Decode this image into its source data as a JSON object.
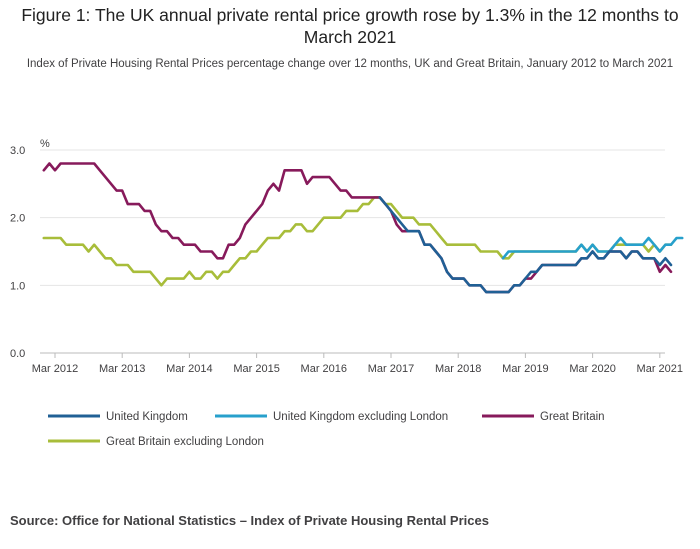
{
  "header": {
    "title": "Figure 1: The UK annual private rental price growth rose by 1.3% in the 12 months to March 2021",
    "subtitle": "Index of Private Housing Rental Prices percentage change over 12 months, UK and Great Britain, January 2012 to March 2021"
  },
  "footer": {
    "source": "Source: Office for National Statistics – Index of Private Housing Rental Prices"
  },
  "chart_data": {
    "type": "line",
    "unit_label": "%",
    "ylim": [
      0,
      3
    ],
    "yticks": [
      "0.0",
      "1.0",
      "2.0",
      "3.0"
    ],
    "xtick_labels": [
      "Mar 2012",
      "Mar 2013",
      "Mar 2014",
      "Mar 2015",
      "Mar 2016",
      "Mar 2017",
      "Mar 2018",
      "Mar 2019",
      "Mar 2020",
      "Mar 2021"
    ],
    "x_start": "Jan 2012",
    "x_end": "Mar 2021",
    "grid": true,
    "legend_position": "bottom",
    "series": [
      {
        "name": "Great Britain excluding London",
        "color": "#a8bd3a",
        "values": [
          1.7,
          1.7,
          1.7,
          1.7,
          1.6,
          1.6,
          1.6,
          1.6,
          1.5,
          1.6,
          1.5,
          1.4,
          1.4,
          1.3,
          1.3,
          1.3,
          1.2,
          1.2,
          1.2,
          1.2,
          1.1,
          1.0,
          1.1,
          1.1,
          1.1,
          1.1,
          1.2,
          1.1,
          1.1,
          1.2,
          1.2,
          1.1,
          1.2,
          1.2,
          1.3,
          1.4,
          1.4,
          1.5,
          1.5,
          1.6,
          1.7,
          1.7,
          1.7,
          1.8,
          1.8,
          1.9,
          1.9,
          1.8,
          1.8,
          1.9,
          2.0,
          2.0,
          2.0,
          2.0,
          2.1,
          2.1,
          2.1,
          2.2,
          2.2,
          2.3,
          2.3,
          2.2,
          2.2,
          2.1,
          2.0,
          2.0,
          2.0,
          1.9,
          1.9,
          1.9,
          1.8,
          1.7,
          1.6,
          1.6,
          1.6,
          1.6,
          1.6,
          1.6,
          1.5,
          1.5,
          1.5,
          1.5,
          1.4,
          1.4,
          1.5,
          1.5,
          1.5,
          1.5,
          1.5,
          1.5,
          1.5,
          1.5,
          1.5,
          1.5,
          1.5,
          1.5,
          1.6,
          1.5,
          1.6,
          1.5,
          1.5,
          1.5,
          1.6,
          1.6,
          1.6,
          1.6,
          1.6,
          1.6,
          1.5,
          1.6,
          1.5,
          1.6,
          1.6
        ]
      },
      {
        "name": "United Kingdom excluding London",
        "color": "#27a0cc",
        "values": [
          null,
          null,
          null,
          null,
          null,
          null,
          null,
          null,
          null,
          null,
          null,
          null,
          null,
          null,
          null,
          null,
          null,
          null,
          null,
          null,
          null,
          null,
          null,
          null,
          null,
          null,
          null,
          null,
          null,
          null,
          null,
          null,
          null,
          null,
          null,
          null,
          null,
          null,
          null,
          null,
          null,
          null,
          null,
          null,
          null,
          null,
          null,
          null,
          null,
          null,
          null,
          null,
          null,
          null,
          null,
          null,
          null,
          null,
          null,
          null,
          null,
          null,
          null,
          null,
          null,
          null,
          null,
          null,
          null,
          null,
          null,
          null,
          null,
          null,
          null,
          null,
          null,
          null,
          null,
          null,
          null,
          null,
          1.4,
          1.5,
          1.5,
          1.5,
          1.5,
          1.5,
          1.5,
          1.5,
          1.5,
          1.5,
          1.5,
          1.5,
          1.5,
          1.5,
          1.6,
          1.5,
          1.6,
          1.5,
          1.5,
          1.5,
          1.6,
          1.7,
          1.6,
          1.6,
          1.6,
          1.6,
          1.7,
          1.6,
          1.5,
          1.6,
          1.6,
          1.7,
          1.7
        ]
      },
      {
        "name": "Great Britain",
        "color": "#871a5b",
        "values": [
          2.7,
          2.8,
          2.7,
          2.8,
          2.8,
          2.8,
          2.8,
          2.8,
          2.8,
          2.8,
          2.7,
          2.6,
          2.5,
          2.4,
          2.4,
          2.2,
          2.2,
          2.2,
          2.1,
          2.1,
          1.9,
          1.8,
          1.8,
          1.7,
          1.7,
          1.6,
          1.6,
          1.6,
          1.5,
          1.5,
          1.5,
          1.4,
          1.4,
          1.6,
          1.6,
          1.7,
          1.9,
          2.0,
          2.1,
          2.2,
          2.4,
          2.5,
          2.4,
          2.7,
          2.7,
          2.7,
          2.7,
          2.5,
          2.6,
          2.6,
          2.6,
          2.6,
          2.5,
          2.4,
          2.4,
          2.3,
          2.3,
          2.3,
          2.3,
          2.3,
          2.3,
          2.2,
          2.1,
          1.9,
          1.8,
          1.8,
          1.8,
          1.8,
          1.6,
          1.6,
          1.5,
          1.4,
          1.2,
          1.1,
          1.1,
          1.1,
          1.0,
          1.0,
          1.0,
          0.9,
          0.9,
          0.9,
          0.9,
          0.9,
          1.0,
          1.0,
          1.1,
          1.1,
          1.2,
          1.3,
          1.3,
          1.3,
          1.3,
          1.3,
          1.3,
          1.3,
          1.4,
          1.4,
          1.5,
          1.4,
          1.4,
          1.5,
          1.5,
          1.5,
          1.4,
          1.5,
          1.5,
          1.4,
          1.4,
          1.4,
          1.2,
          1.3,
          1.2
        ]
      },
      {
        "name": "United Kingdom",
        "color": "#206095",
        "values": [
          null,
          null,
          null,
          null,
          null,
          null,
          null,
          null,
          null,
          null,
          null,
          null,
          null,
          null,
          null,
          null,
          null,
          null,
          null,
          null,
          null,
          null,
          null,
          null,
          null,
          null,
          null,
          null,
          null,
          null,
          null,
          null,
          null,
          null,
          null,
          null,
          null,
          null,
          null,
          null,
          null,
          null,
          null,
          null,
          null,
          null,
          null,
          null,
          null,
          null,
          null,
          null,
          null,
          null,
          null,
          null,
          null,
          null,
          null,
          null,
          2.3,
          2.2,
          2.1,
          2.0,
          1.9,
          1.8,
          1.8,
          1.8,
          1.6,
          1.6,
          1.5,
          1.4,
          1.2,
          1.1,
          1.1,
          1.1,
          1.0,
          1.0,
          1.0,
          0.9,
          0.9,
          0.9,
          0.9,
          0.9,
          1.0,
          1.0,
          1.1,
          1.2,
          1.2,
          1.3,
          1.3,
          1.3,
          1.3,
          1.3,
          1.3,
          1.3,
          1.4,
          1.4,
          1.5,
          1.4,
          1.4,
          1.5,
          1.5,
          1.5,
          1.4,
          1.5,
          1.5,
          1.4,
          1.4,
          1.4,
          1.3,
          1.4,
          1.3
        ]
      }
    ],
    "legend": [
      {
        "label": "United Kingdom",
        "color": "#206095"
      },
      {
        "label": "United Kingdom excluding London",
        "color": "#27a0cc"
      },
      {
        "label": "Great Britain",
        "color": "#871a5b"
      },
      {
        "label": "Great Britain excluding London",
        "color": "#a8bd3a"
      }
    ]
  }
}
